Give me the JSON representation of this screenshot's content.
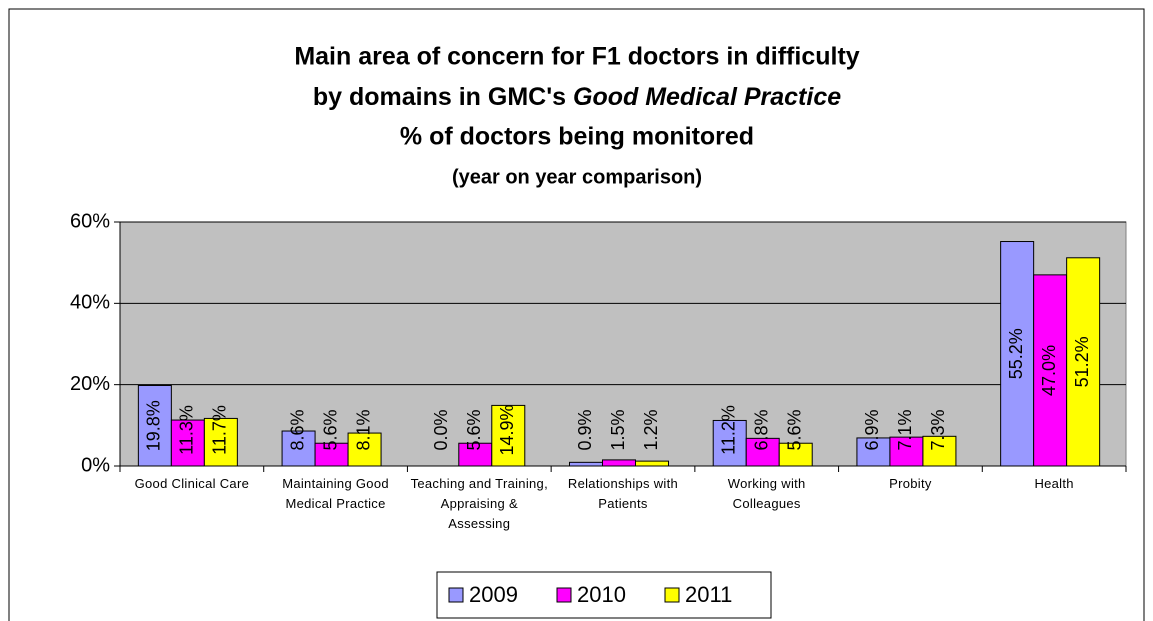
{
  "chart_data": {
    "type": "bar",
    "title": [
      "Main area of concern for F1 doctors in difficulty",
      "by domains in GMC's",
      "Good Medical Practice",
      "% of doctors being monitored"
    ],
    "subtitle": "(year on year comparison)",
    "categories": [
      "Good Clinical Care",
      "Maintaining Good Medical Practice",
      "Teaching and Training, Appraising & Assessing",
      "Relationships with Patients",
      "Working with Colleagues",
      "Probity",
      "Health"
    ],
    "series": [
      {
        "name": "2009",
        "color": "#9999ff",
        "values": [
          19.8,
          8.6,
          0.0,
          0.9,
          11.2,
          6.9,
          55.2
        ],
        "value_labels": [
          "19.8%",
          "8.6%",
          "0.0%",
          "0.9%",
          "11.2%",
          "6.9%",
          "55.2%"
        ]
      },
      {
        "name": "2010",
        "color": "#ff00ff",
        "values": [
          11.3,
          5.6,
          5.6,
          1.5,
          6.8,
          7.1,
          47.0
        ],
        "value_labels": [
          "11.3%",
          "5.6%",
          "5.6%",
          "1.5%",
          "6.8%",
          "7.1%",
          "47.0%"
        ]
      },
      {
        "name": "2011",
        "color": "#ffff00",
        "values": [
          11.7,
          8.1,
          14.9,
          1.2,
          5.6,
          7.3,
          51.2
        ],
        "value_labels": [
          "11.7%",
          "8.1%",
          "14.9%",
          "1.2%",
          "5.6%",
          "7.3%",
          "51.2%"
        ]
      }
    ],
    "ylim": [
      0,
      60
    ],
    "yticks": [
      {
        "value": 0,
        "label": "0%"
      },
      {
        "value": 20,
        "label": "20%"
      },
      {
        "value": 40,
        "label": "40%"
      },
      {
        "value": 60,
        "label": "60%"
      }
    ],
    "grid": true,
    "legend": "bottom"
  }
}
